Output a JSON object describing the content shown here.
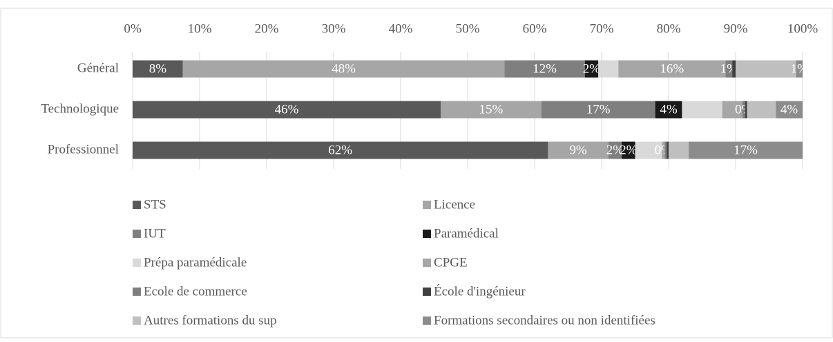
{
  "chart_data": {
    "type": "stacked-barh",
    "categories": [
      "Général",
      "Technologique",
      "Professionnel"
    ],
    "xlim": [
      0,
      100
    ],
    "xticks": [
      {
        "value": 0,
        "label": "0%"
      },
      {
        "value": 10,
        "label": "10%"
      },
      {
        "value": 20,
        "label": "20%"
      },
      {
        "value": 30,
        "label": "30%"
      },
      {
        "value": 40,
        "label": "40%"
      },
      {
        "value": 50,
        "label": "50%"
      },
      {
        "value": 60,
        "label": "60%"
      },
      {
        "value": 70,
        "label": "70%"
      },
      {
        "value": 80,
        "label": "80%"
      },
      {
        "value": 90,
        "label": "90%"
      },
      {
        "value": 100,
        "label": "100%"
      }
    ],
    "grid": true,
    "series": [
      {
        "name": "STS",
        "color": "#595959",
        "values": [
          7.5,
          46,
          62
        ],
        "value_labels": [
          "8%",
          "46%",
          "62%"
        ]
      },
      {
        "name": "Licence",
        "color": "#a6a6a6",
        "values": [
          48,
          15,
          9
        ],
        "value_labels": [
          "48%",
          "15%",
          "9%"
        ]
      },
      {
        "name": "IUT",
        "color": "#7f7f7f",
        "values": [
          12,
          17,
          2
        ],
        "value_labels": [
          "12%",
          "17%",
          "2%"
        ]
      },
      {
        "name": "Paramédical",
        "color": "#1a1a1a",
        "values": [
          2,
          4,
          2
        ],
        "value_labels": [
          "2%",
          "4%",
          "2%"
        ]
      },
      {
        "name": "Prépa paramédicale",
        "color": "#d9d9d9",
        "values": [
          3,
          6,
          4
        ],
        "value_labels": [
          null,
          null,
          null
        ]
      },
      {
        "name": "CPGE",
        "color": "#a6a6a6",
        "values": [
          16,
          3,
          0.4
        ],
        "value_labels": [
          "16%",
          null,
          "0%"
        ]
      },
      {
        "name": "Ecole de commerce",
        "color": "#7f7f7f",
        "values": [
          1,
          0.4,
          0.3
        ],
        "value_labels": [
          "1%",
          "0%",
          null
        ]
      },
      {
        "name": "École d'ingénieur",
        "color": "#404040",
        "values": [
          0.5,
          0.3,
          0.3
        ],
        "value_labels": [
          null,
          null,
          null
        ]
      },
      {
        "name": "Autres formations du sup",
        "color": "#bfbfbf",
        "values": [
          9,
          4.3,
          3
        ],
        "value_labels": [
          null,
          null,
          null
        ]
      },
      {
        "name": "Formations secondaires ou non identifiées",
        "color": "#8c8c8c",
        "values": [
          1,
          4,
          17
        ],
        "value_labels": [
          "1%",
          "4%",
          "17%"
        ]
      }
    ]
  }
}
